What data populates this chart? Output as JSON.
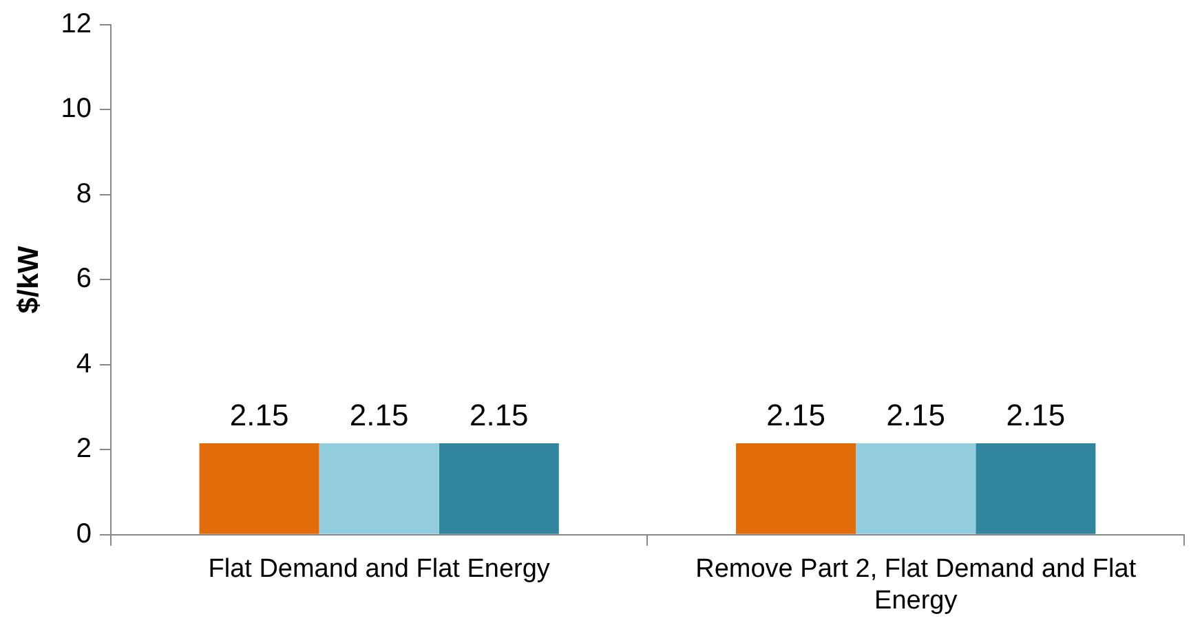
{
  "chart_data": {
    "type": "bar",
    "ylabel": "$/kW",
    "categories": [
      "Flat Demand and Flat Energy",
      "Remove Part 2, Flat Demand and Flat Energy"
    ],
    "series": [
      {
        "color": "#e36c0a",
        "values": [
          2.15,
          2.15
        ]
      },
      {
        "color": "#93cddd",
        "values": [
          2.15,
          2.15
        ]
      },
      {
        "color": "#31859c",
        "values": [
          2.15,
          2.15
        ]
      }
    ],
    "ylim": [
      0,
      12
    ],
    "yticks": [
      0,
      2,
      4,
      6,
      8,
      10,
      12
    ],
    "grid": false,
    "legend": false,
    "data_labels": true
  }
}
